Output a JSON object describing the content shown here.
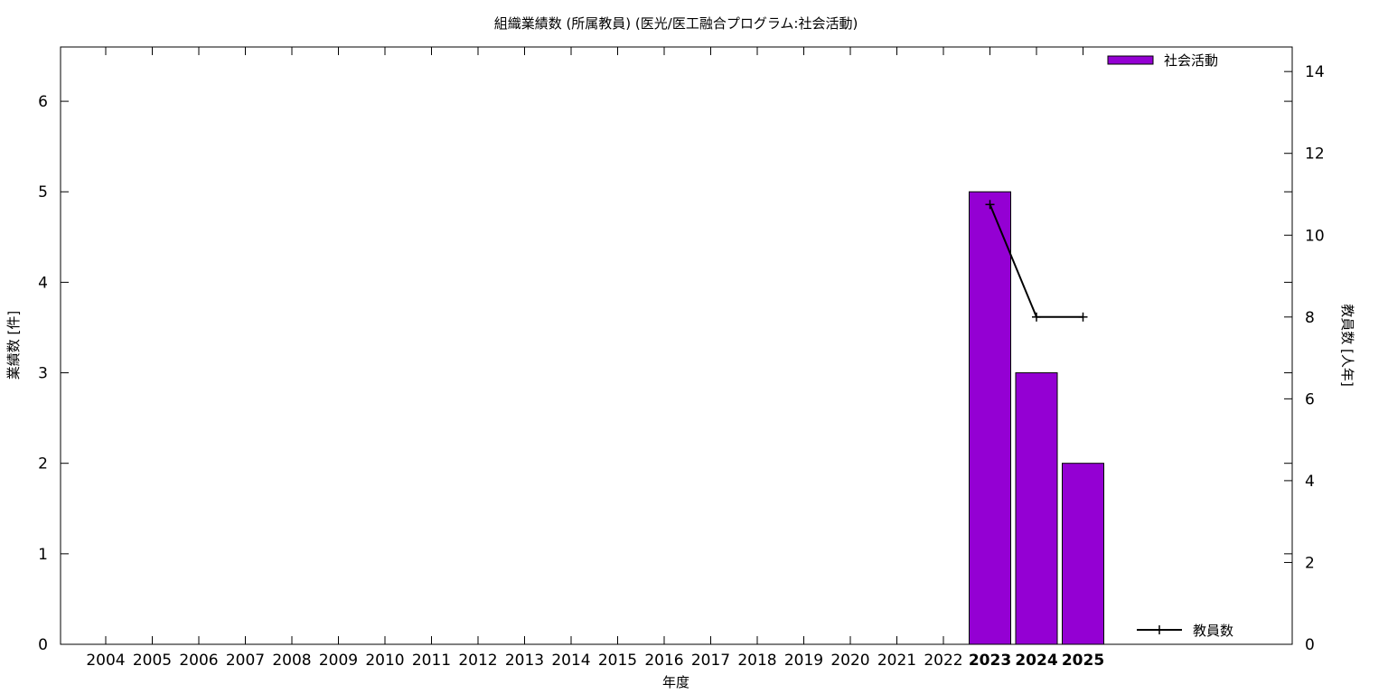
{
  "chart_data": {
    "type": "bar",
    "title": "組織業績数 (所属教員) (医光/医工融合プログラム:社会活動)",
    "xlabel": "年度",
    "ylabel": "業績数 [件]",
    "y2label": "教員数 [人年]",
    "categories": [
      "2004",
      "2005",
      "2006",
      "2007",
      "2008",
      "2009",
      "2010",
      "2011",
      "2012",
      "2013",
      "2014",
      "2015",
      "2016",
      "2017",
      "2018",
      "2019",
      "2020",
      "2021",
      "2022",
      "2023",
      "2024",
      "2025"
    ],
    "highlighted_categories": [
      "2023",
      "2024",
      "2025"
    ],
    "ylim": [
      0,
      6.6
    ],
    "y2lim": [
      0,
      14.6
    ],
    "yticks": [
      0,
      1,
      2,
      3,
      4,
      5,
      6
    ],
    "y2ticks": [
      0,
      2,
      4,
      6,
      8,
      10,
      12,
      14
    ],
    "grid": false,
    "legend_placement": "top-right",
    "series": [
      {
        "name": "社会活動",
        "type": "bar",
        "axis": "left",
        "color": "#9400d3",
        "values": [
          0,
          0,
          0,
          0,
          0,
          0,
          0,
          0,
          0,
          0,
          0,
          0,
          0,
          0,
          0,
          0,
          0,
          0,
          0,
          5,
          3,
          2
        ]
      },
      {
        "name": "教員数",
        "type": "line",
        "axis": "right",
        "color": "#000000",
        "values": [
          null,
          null,
          null,
          null,
          null,
          null,
          null,
          null,
          null,
          null,
          null,
          null,
          null,
          null,
          null,
          null,
          null,
          null,
          null,
          10.75,
          8,
          8
        ]
      }
    ]
  }
}
